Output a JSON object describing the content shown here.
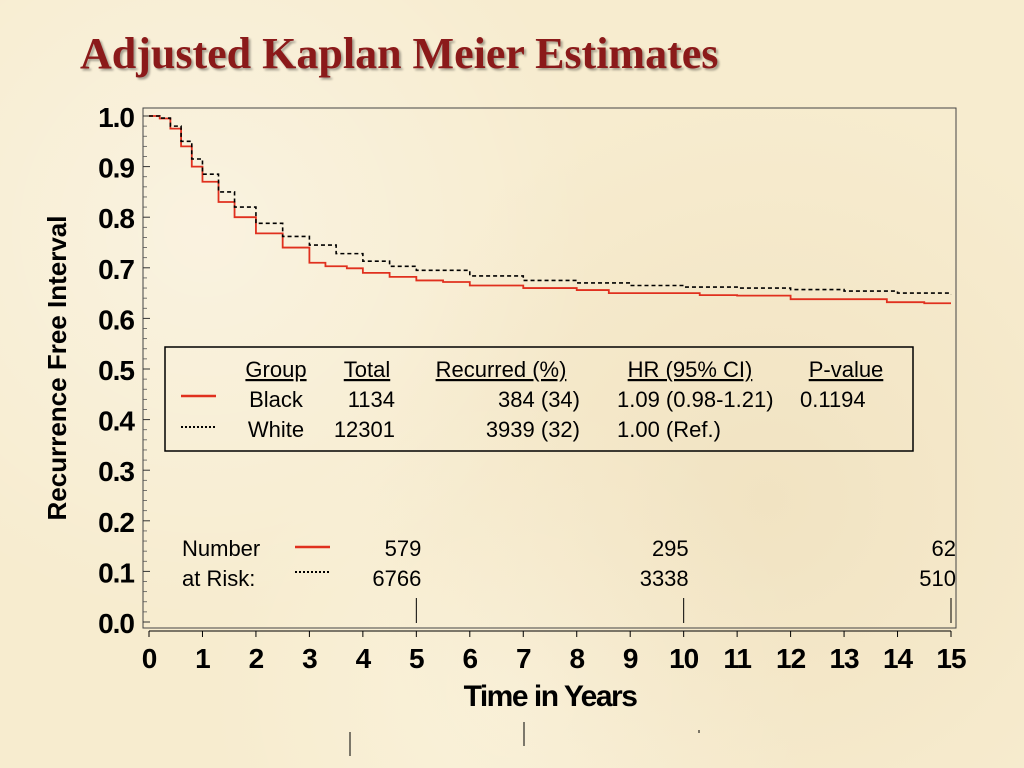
{
  "title": "Adjusted Kaplan Meier Estimates",
  "chart_data": {
    "type": "line",
    "title": "Adjusted Kaplan Meier Estimates",
    "xlabel": "Time in Years",
    "ylabel": "Recurrence Free Interval",
    "xlim": [
      0,
      15
    ],
    "ylim": [
      0,
      1
    ],
    "x_ticks": [
      "0",
      "1",
      "2",
      "3",
      "4",
      "5",
      "6",
      "7",
      "8",
      "9",
      "10",
      "11",
      "12",
      "13",
      "14",
      "15"
    ],
    "y_ticks": [
      "0.0",
      "0.1",
      "0.2",
      "0.3",
      "0.4",
      "0.5",
      "0.6",
      "0.7",
      "0.8",
      "0.9",
      "1.0"
    ],
    "grid": false,
    "colors": {
      "black": "#e0301e",
      "white": "#000000",
      "title": "#8b1a1a"
    },
    "series": [
      {
        "name": "Black",
        "style": "solid",
        "x": [
          0,
          0.2,
          0.4,
          0.6,
          0.8,
          1.0,
          1.3,
          1.6,
          2.0,
          2.5,
          3.0,
          3.3,
          3.7,
          4.0,
          4.5,
          5.0,
          5.5,
          6.0,
          7.0,
          8.0,
          8.6,
          10.0,
          10.3,
          11.0,
          12.0,
          13.0,
          13.8,
          14.5,
          15.0
        ],
        "y": [
          1.0,
          0.995,
          0.975,
          0.94,
          0.9,
          0.87,
          0.83,
          0.8,
          0.768,
          0.74,
          0.71,
          0.703,
          0.699,
          0.69,
          0.682,
          0.675,
          0.672,
          0.665,
          0.66,
          0.656,
          0.65,
          0.65,
          0.646,
          0.645,
          0.638,
          0.638,
          0.632,
          0.63,
          0.63
        ]
      },
      {
        "name": "White",
        "style": "dotted",
        "x": [
          0,
          0.2,
          0.4,
          0.6,
          0.8,
          1.0,
          1.3,
          1.6,
          2.0,
          2.5,
          3.0,
          3.5,
          4.0,
          4.5,
          5.0,
          6.0,
          7.0,
          8.0,
          9.0,
          10.0,
          11.0,
          12.0,
          13.0,
          14.0,
          15.0
        ],
        "y": [
          1.0,
          0.996,
          0.98,
          0.95,
          0.915,
          0.885,
          0.85,
          0.82,
          0.788,
          0.762,
          0.745,
          0.728,
          0.713,
          0.703,
          0.695,
          0.684,
          0.675,
          0.67,
          0.665,
          0.662,
          0.66,
          0.657,
          0.654,
          0.65,
          0.648
        ]
      }
    ],
    "legend_table": {
      "headers": [
        "Group",
        "Total",
        "Recurred (%)",
        "HR (95% CI)",
        "P-value"
      ],
      "rows": [
        {
          "group": "Black",
          "total": "1134",
          "recurred": "384 (34)",
          "hr": "1.09 (0.98-1.21)",
          "p": "0.1194"
        },
        {
          "group": "White",
          "total": "12301",
          "recurred": "3939 (32)",
          "hr": "1.00 (Ref.)",
          "p": ""
        }
      ]
    },
    "at_risk": {
      "label_line1": "Number",
      "label_line2": "at Risk:",
      "times": [
        5,
        10,
        15
      ],
      "black": [
        "579",
        "295",
        "62"
      ],
      "white": [
        "6766",
        "3338",
        "510"
      ]
    }
  }
}
